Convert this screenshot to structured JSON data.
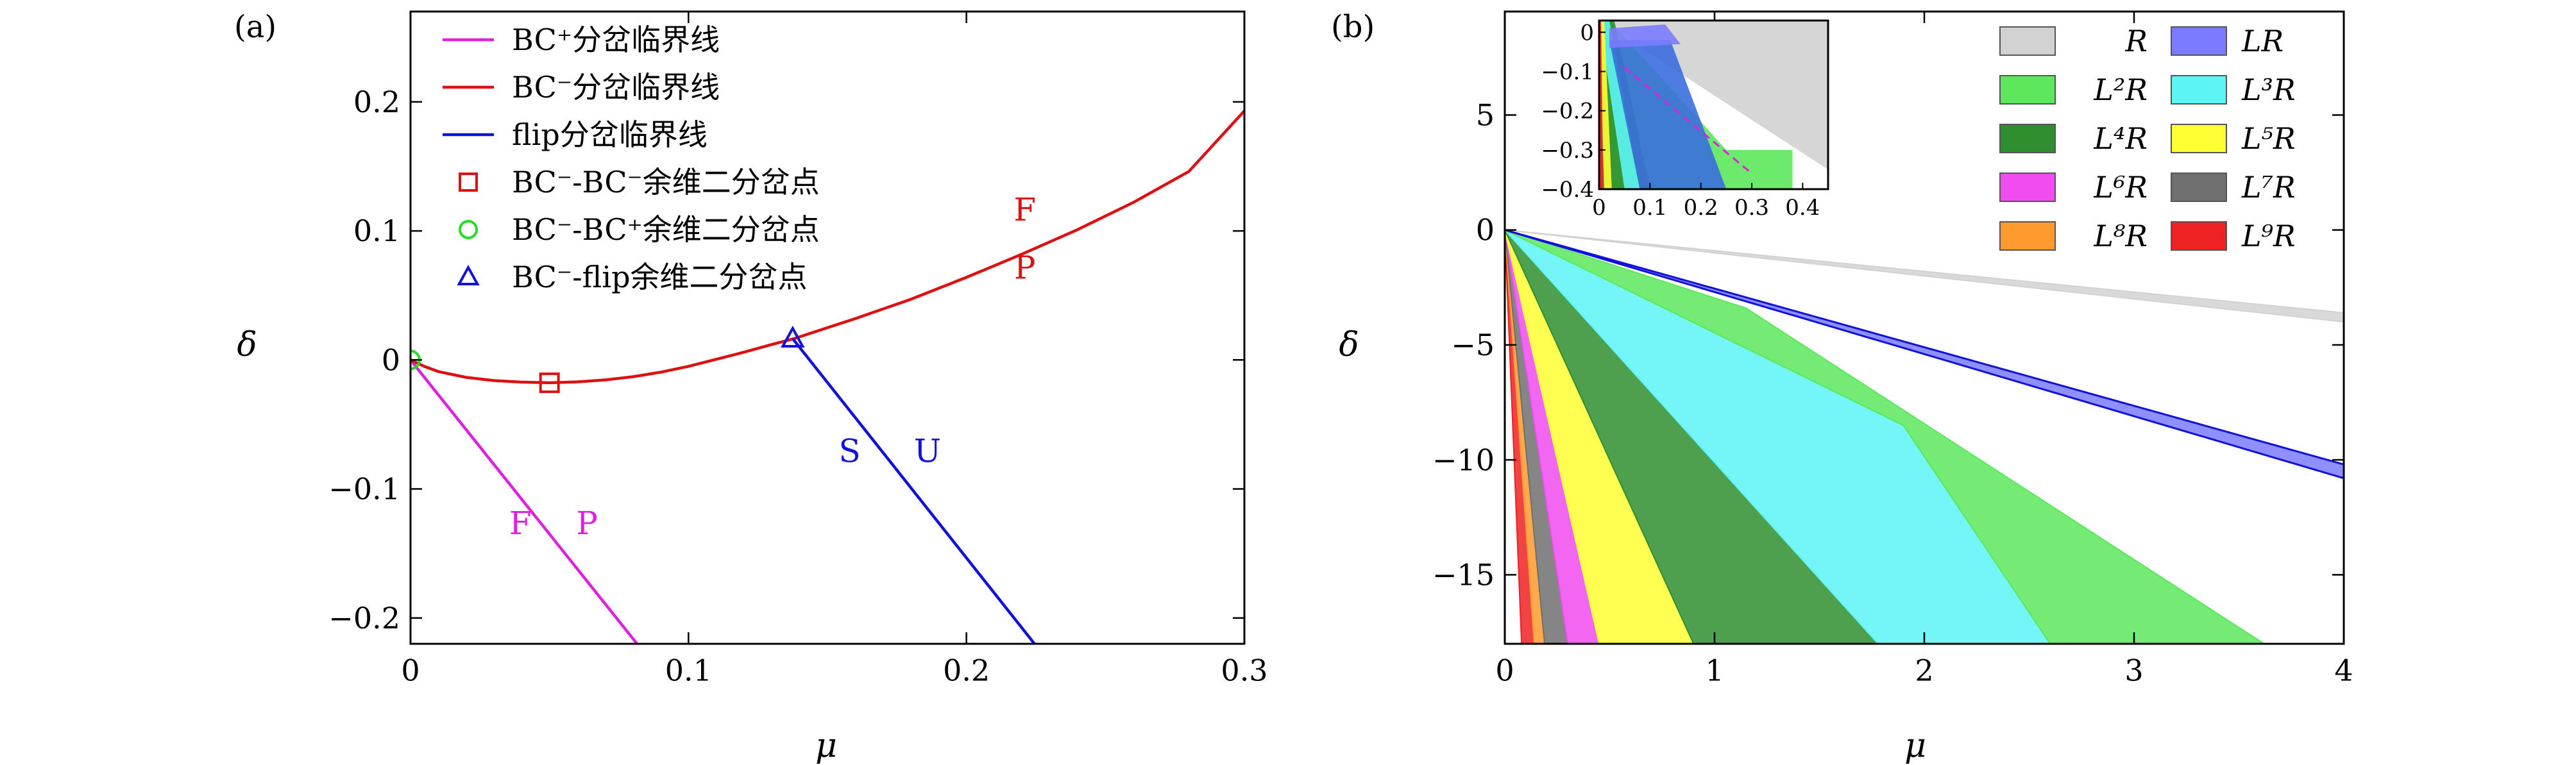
{
  "chart_data": [
    {
      "panel_label": "(a)",
      "type": "line",
      "xlabel": "μ",
      "ylabel": "δ",
      "xlim": [
        0,
        0.3
      ],
      "ylim": [
        -0.22,
        0.27
      ],
      "xticks": [
        0,
        0.1,
        0.2,
        0.3
      ],
      "xtick_labels": [
        "0",
        "0.1",
        "0.2",
        "0.3"
      ],
      "yticks": [
        -0.2,
        -0.1,
        0,
        0.1,
        0.2
      ],
      "ytick_labels": [
        "−0.2",
        "−0.1",
        "0",
        "0.1",
        "0.2"
      ],
      "series": [
        {
          "name": "BC⁺分岔临界线",
          "color": "#e020e0",
          "x": [
            0,
            0.0815
          ],
          "y": [
            0,
            -0.22
          ]
        },
        {
          "name": "BC⁻分岔临界线",
          "color": "#dd1111",
          "x": [
            0,
            0.005,
            0.01,
            0.02,
            0.03,
            0.04,
            0.05,
            0.06,
            0.07,
            0.08,
            0.09,
            0.1,
            0.11,
            0.12,
            0.13,
            0.138,
            0.15,
            0.16,
            0.18,
            0.2,
            0.22,
            0.24,
            0.26,
            0.28,
            0.3
          ],
          "y": [
            0,
            -0.005,
            -0.009,
            -0.0135,
            -0.016,
            -0.0172,
            -0.0177,
            -0.017,
            -0.0155,
            -0.013,
            -0.0095,
            -0.005,
            0.0005,
            0.006,
            0.012,
            0.0165,
            0.025,
            0.032,
            0.047,
            0.064,
            0.082,
            0.101,
            0.122,
            0.146,
            0.193
          ]
        },
        {
          "name": "flip分岔临界线",
          "color": "#1111dd",
          "x": [
            0.1375,
            0.2245
          ],
          "y": [
            0.0165,
            -0.22
          ]
        }
      ],
      "markers": [
        {
          "name": "BC⁻-BC⁻余维二分岔点",
          "shape": "square",
          "color": "#dd1111",
          "x": 0.05,
          "y": -0.0177
        },
        {
          "name": "BC⁻-BC⁺余维二分岔点",
          "shape": "circle",
          "color": "#22dd22",
          "x": 0,
          "y": 0
        },
        {
          "name": "BC⁻-flip余维二分岔点",
          "shape": "triangle",
          "color": "#1111dd",
          "x": 0.1375,
          "y": 0.0165
        }
      ],
      "annotations": [
        {
          "text": "F",
          "color": "#dd1111",
          "x": 0.221,
          "y": 0.108
        },
        {
          "text": "P",
          "color": "#dd1111",
          "x": 0.221,
          "y": 0.063
        },
        {
          "text": "S",
          "color": "#1111dd",
          "x": 0.158,
          "y": -0.079
        },
        {
          "text": "U",
          "color": "#1111dd",
          "x": 0.186,
          "y": -0.079
        },
        {
          "text": "F",
          "color": "#e020e0",
          "x": 0.0395,
          "y": -0.135
        },
        {
          "text": "P",
          "color": "#e020e0",
          "x": 0.0635,
          "y": -0.135
        }
      ],
      "legend": "top-left"
    },
    {
      "panel_label": "(b)",
      "type": "area",
      "xlabel": "μ",
      "ylabel": "δ",
      "xlim": [
        0,
        4
      ],
      "ylim": [
        -18,
        9.5
      ],
      "xticks": [
        0,
        1,
        2,
        3,
        4
      ],
      "xtick_labels": [
        "0",
        "1",
        "2",
        "3",
        "4"
      ],
      "yticks": [
        -15,
        -10,
        -5,
        0,
        5
      ],
      "ytick_labels": [
        "−15",
        "−10",
        "−5",
        "0",
        "5"
      ],
      "regions": [
        {
          "name": "R",
          "color": "#d2d2d2",
          "vertices": [
            [
              0,
              0
            ],
            [
              4,
              -4
            ],
            [
              4,
              -3.6
            ]
          ]
        },
        {
          "name": "L⁹R",
          "color": "#ee2222",
          "vertices": [
            [
              0,
              0
            ],
            [
              0.08,
              -18
            ],
            [
              0.14,
              -18
            ]
          ]
        },
        {
          "name": "L⁸R",
          "color": "#ff9a2e",
          "vertices": [
            [
              0,
              0
            ],
            [
              0.14,
              -18
            ],
            [
              0.19,
              -18
            ]
          ]
        },
        {
          "name": "L⁷R",
          "color": "#707070",
          "vertices": [
            [
              0,
              0
            ],
            [
              0.19,
              -18
            ],
            [
              0.3,
              -18
            ]
          ]
        },
        {
          "name": "L⁶R",
          "color": "#f04cf0",
          "vertices": [
            [
              0,
              0
            ],
            [
              0.3,
              -18
            ],
            [
              0.45,
              -18
            ]
          ]
        },
        {
          "name": "L⁵R",
          "color": "#ffff33",
          "vertices": [
            [
              0,
              0
            ],
            [
              0.45,
              -18
            ],
            [
              0.9,
              -18
            ]
          ]
        },
        {
          "name": "L⁴R",
          "color": "#2f8f2f",
          "vertices": [
            [
              0,
              0
            ],
            [
              0.9,
              -18
            ],
            [
              1.78,
              -18
            ]
          ]
        },
        {
          "name": "L³R",
          "color": "#5cf4f4",
          "vertices": [
            [
              0,
              0
            ],
            [
              1.78,
              -18
            ],
            [
              2.6,
              -18
            ],
            [
              1.9,
              -8.5
            ]
          ]
        },
        {
          "name": "L²R",
          "color": "#5ce85c",
          "vertices": [
            [
              0,
              0
            ],
            [
              1.15,
              -3.4
            ],
            [
              3.62,
              -18
            ],
            [
              2.6,
              -18
            ],
            [
              1.9,
              -8.5
            ]
          ]
        },
        {
          "name": "LR",
          "color": "#7b7bff",
          "vertices": [
            [
              0,
              0
            ],
            [
              4,
              -10.2
            ],
            [
              4,
              -10.8
            ]
          ]
        }
      ],
      "legend": "top-right",
      "inset": {
        "xlim": [
          0,
          0.45
        ],
        "ylim": [
          -0.4,
          0.03
        ],
        "xticks": [
          0,
          0.1,
          0.2,
          0.3,
          0.4
        ],
        "xtick_labels": [
          "0",
          "0.1",
          "0.2",
          "0.3",
          "0.4"
        ],
        "yticks": [
          -0.4,
          -0.3,
          -0.2,
          -0.1,
          0
        ],
        "ytick_labels": [
          "−0.4",
          "−0.3",
          "−0.2",
          "−0.1",
          "0"
        ]
      }
    }
  ],
  "legend_a": [
    {
      "label": "BC⁺分岔临界线",
      "marker": "line",
      "color": "#e020e0"
    },
    {
      "label": "BC⁻分岔临界线",
      "marker": "line",
      "color": "#dd1111"
    },
    {
      "label": "flip分岔临界线",
      "marker": "line",
      "color": "#1111dd"
    },
    {
      "label": "BC⁻-BC⁻余维二分岔点",
      "marker": "square",
      "color": "#dd1111"
    },
    {
      "label": "BC⁻-BC⁺余维二分岔点",
      "marker": "circle",
      "color": "#22dd22"
    },
    {
      "label": "BC⁻-flip余维二分岔点",
      "marker": "triangle",
      "color": "#1111dd"
    }
  ],
  "legend_b": [
    {
      "label": "R",
      "color": "#d2d2d2"
    },
    {
      "label": "LR",
      "color": "#7b7bff"
    },
    {
      "label": "L²R",
      "color": "#5ce85c"
    },
    {
      "label": "L³R",
      "color": "#5cf4f4"
    },
    {
      "label": "L⁴R",
      "color": "#2f8f2f"
    },
    {
      "label": "L⁵R",
      "color": "#ffff33"
    },
    {
      "label": "L⁶R",
      "color": "#f04cf0"
    },
    {
      "label": "L⁷R",
      "color": "#707070"
    },
    {
      "label": "L⁸R",
      "color": "#ff9a2e"
    },
    {
      "label": "L⁹R",
      "color": "#ee2222"
    }
  ]
}
